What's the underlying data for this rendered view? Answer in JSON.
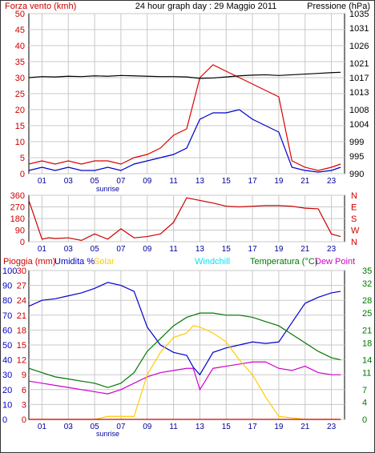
{
  "header": {
    "left_title": "Forza vento (kmh)",
    "center_title": "24 hour graph day : 29 Maggio 2011",
    "right_title": "Pressione (hPa)"
  },
  "x_ticks": [
    "01",
    "03",
    "05",
    "07",
    "09",
    "11",
    "13",
    "15",
    "17",
    "19",
    "21",
    "23"
  ],
  "sunrise_label": "sunrise",
  "panel3_legend": {
    "rain": "Pioggia (mm)",
    "humidity": "Umidita %",
    "solar": "Solar",
    "windchill": "Windchill",
    "temperature": "Temperatura (°C)",
    "dewpoint": "Dew Point"
  },
  "colors": {
    "wind": "#dd0000",
    "gust": "#0000cc",
    "pressure": "#000000",
    "direction": "#cc0000",
    "humidity": "#0000cc",
    "solar": "#ffcc00",
    "windchill": "#00e5ee",
    "temperature": "#007700",
    "dewpoint": "#cc00cc",
    "rain": "#cc0000",
    "grid": "#c8c8c8"
  },
  "chart_data": [
    {
      "type": "line",
      "title": "24 hour graph day : 29 Maggio 2011",
      "ylabel": "Forza vento (kmh)",
      "y2label": "Pressione (hPa)",
      "x_hours": [
        0,
        1,
        2,
        3,
        4,
        5,
        6,
        7,
        8,
        9,
        10,
        11,
        12,
        13,
        14,
        15,
        16,
        17,
        18,
        19,
        20,
        21,
        22,
        23,
        23.7
      ],
      "ylim": [
        0,
        50
      ],
      "yticks": [
        0,
        5,
        10,
        15,
        20,
        25,
        30,
        35,
        40,
        45,
        50
      ],
      "y2lim": [
        990,
        1035
      ],
      "y2ticks": [
        990,
        995,
        999,
        1004,
        1008,
        1013,
        1017,
        1021,
        1026,
        1031,
        1035
      ],
      "series": [
        {
          "key": "wind",
          "values": [
            3,
            4,
            3,
            4,
            3,
            4,
            4,
            3,
            5,
            6,
            8,
            12,
            14,
            30,
            34,
            32,
            30,
            28,
            26,
            24,
            4,
            2,
            1,
            2,
            3
          ]
        },
        {
          "key": "gust",
          "values": [
            1,
            2,
            1,
            2,
            1,
            1,
            2,
            1,
            3,
            4,
            5,
            6,
            8,
            17,
            19,
            19,
            20,
            17,
            15,
            13,
            2,
            1,
            0.5,
            1,
            2
          ]
        },
        {
          "key": "pressure",
          "y_axis": "right",
          "values": [
            1017,
            1017.3,
            1017.2,
            1017.4,
            1017.3,
            1017.5,
            1017.4,
            1017.6,
            1017.5,
            1017.4,
            1017.3,
            1017.3,
            1017.2,
            1016.8,
            1016.9,
            1017.2,
            1017.5,
            1017.7,
            1017.8,
            1017.6,
            1017.8,
            1018,
            1018.2,
            1018.4,
            1018.5
          ]
        }
      ]
    },
    {
      "type": "line",
      "ylabel": "N W S E N",
      "yticks": [
        0,
        90,
        180,
        270,
        360
      ],
      "ylim": [
        0,
        360
      ],
      "right_labels": [
        "N",
        "W",
        "S",
        "E",
        "N"
      ],
      "series": [
        {
          "key": "direction",
          "x_hours": [
            0,
            1,
            1.5,
            2,
            3,
            4,
            5,
            6,
            7,
            8,
            9,
            10,
            11,
            12,
            13,
            14,
            15,
            16,
            17,
            18,
            19,
            20,
            21,
            22,
            23,
            23.7
          ],
          "values": [
            320,
            20,
            30,
            25,
            30,
            10,
            60,
            20,
            100,
            30,
            40,
            60,
            150,
            340,
            320,
            300,
            275,
            270,
            275,
            280,
            280,
            275,
            260,
            255,
            60,
            40
          ]
        }
      ]
    },
    {
      "type": "line",
      "ylim_left_rain": [
        0,
        30
      ],
      "yticks_left_rain": [
        0,
        3,
        6,
        9,
        12,
        15,
        18,
        21,
        24,
        27,
        30
      ],
      "ylim_left_humidity": [
        0,
        100
      ],
      "yticks_left_humidity": [
        0,
        10,
        20,
        30,
        40,
        50,
        60,
        70,
        80,
        90,
        100
      ],
      "ylim_right": [
        0,
        35
      ],
      "yticks_right": [
        0,
        4,
        7,
        11,
        14,
        18,
        21,
        25,
        28,
        32,
        35
      ],
      "x_hours": [
        0,
        1,
        2,
        3,
        4,
        5,
        6,
        7,
        8,
        9,
        10,
        11,
        12,
        12.5,
        13,
        14,
        15,
        16,
        17,
        18,
        19,
        20,
        21,
        22,
        23,
        23.7
      ],
      "series": [
        {
          "key": "humidity",
          "values": [
            76,
            80,
            81,
            83,
            85,
            88,
            92,
            90,
            86,
            62,
            50,
            45,
            43,
            35,
            30,
            45,
            48,
            50,
            52,
            51,
            52,
            65,
            78,
            82,
            85,
            86
          ]
        },
        {
          "key": "temperature",
          "y_axis": "right",
          "values": [
            12,
            11,
            10,
            9.5,
            9,
            8.5,
            7.5,
            8.5,
            11,
            16,
            19,
            22,
            24,
            24.5,
            25,
            25,
            24.5,
            24.5,
            24,
            23,
            22,
            20,
            18,
            16,
            14.5,
            14
          ]
        },
        {
          "key": "dewpoint",
          "y_axis": "right",
          "values": [
            9,
            8.5,
            8,
            7.5,
            7,
            6.5,
            6,
            7,
            8.5,
            10,
            11,
            11.5,
            12,
            12,
            7,
            12,
            12.5,
            13,
            13.5,
            13.5,
            12,
            11.5,
            12.5,
            11,
            10.5,
            10.5
          ]
        },
        {
          "key": "solar",
          "y_axis": "humidity",
          "values": [
            0,
            0,
            0,
            0,
            0,
            0,
            2,
            2,
            2,
            30,
            45,
            55,
            58,
            63,
            62,
            58,
            52,
            40,
            30,
            15,
            2,
            1,
            0,
            0,
            0,
            0
          ]
        },
        {
          "key": "rain",
          "values": [
            0,
            0,
            0,
            0,
            0,
            0,
            0,
            0,
            0,
            0,
            0,
            0,
            0,
            0,
            0,
            0,
            0,
            0,
            0,
            0,
            0,
            0,
            0,
            0,
            0,
            0
          ]
        }
      ]
    }
  ]
}
